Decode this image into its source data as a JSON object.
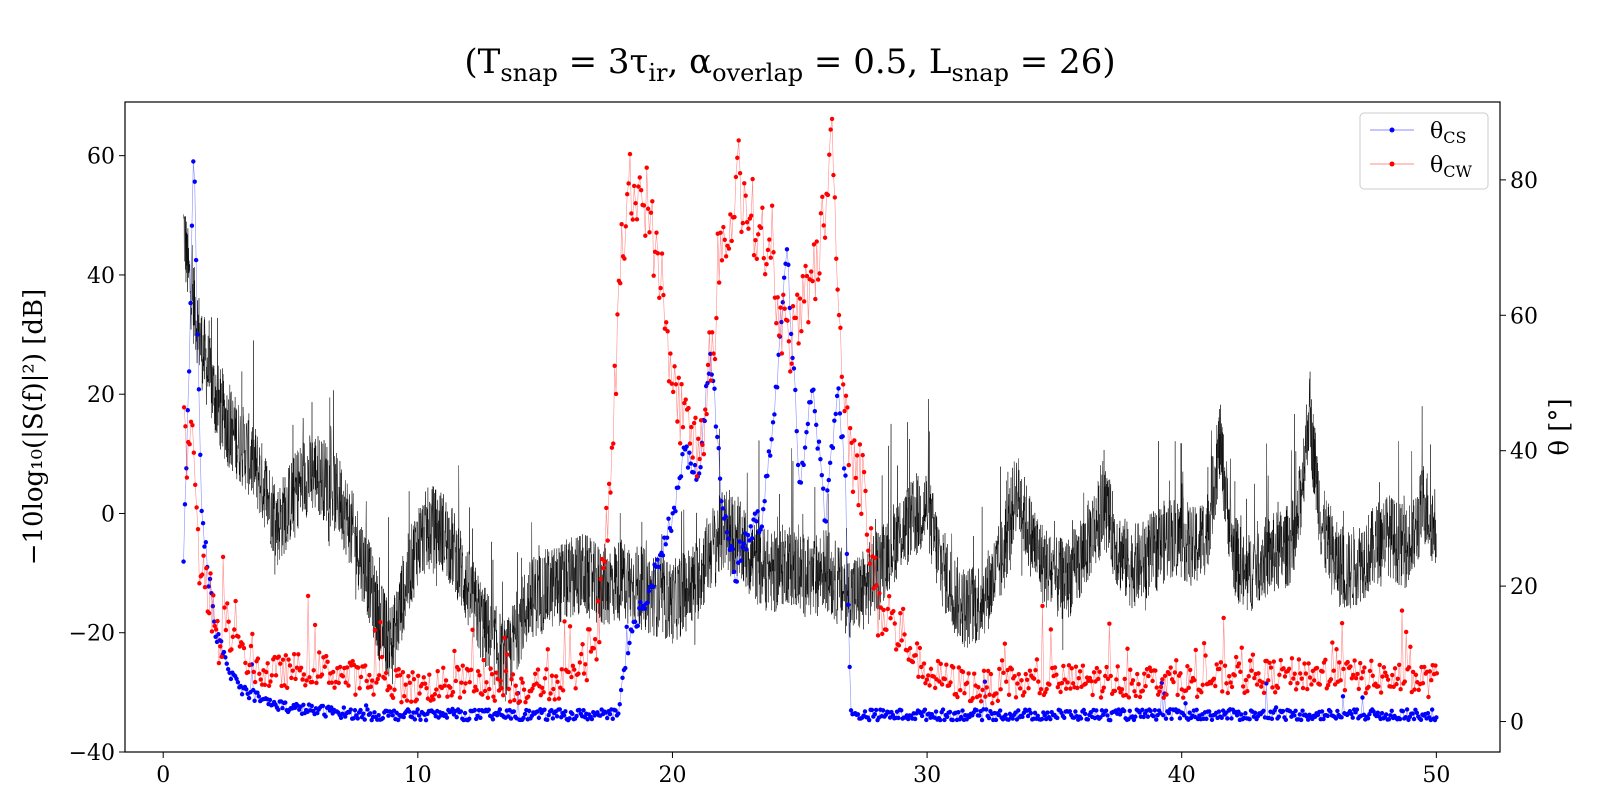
{
  "chart_data": {
    "type": "line",
    "title": "(T_snap = 3τ_ir,   α_overlap = 0.5,   L_snap = 26)",
    "title_parts": {
      "p1": "(T",
      "s1": "snap",
      "p2": " = 3τ",
      "s2": "ir",
      "p3": ",   α",
      "s3": "overlap",
      "p4": " = 0.5,   L",
      "s4": "snap",
      "p5": " = 26)"
    },
    "xlabel": "",
    "ylabel": "−10log₁₀(|S(f)|²) [dB]",
    "y2label": "θ [°]",
    "xlim": [
      -1.5,
      52.5
    ],
    "ylim": [
      -40,
      69
    ],
    "y2lim": [
      -4.5,
      91.5
    ],
    "x_ticks": [
      "0",
      "10",
      "20",
      "30",
      "40",
      "50"
    ],
    "y_ticks": [
      "−40",
      "−20",
      "0",
      "20",
      "40",
      "60"
    ],
    "y2_ticks": [
      "0",
      "20",
      "40",
      "60",
      "80"
    ],
    "grid": false,
    "legend_placement": "top-right",
    "legend": {
      "cs": {
        "base": "θ",
        "sub": "CS"
      },
      "cw": {
        "base": "θ",
        "sub": "CW"
      }
    },
    "colors": {
      "spectrum": "#000000",
      "cs": "#0000ff",
      "cw": "#ff0000"
    },
    "spectrum_envelope": {
      "x": [
        0.8,
        1.0,
        1.5,
        2.0,
        2.5,
        3.0,
        3.5,
        4.0,
        4.5,
        5.0,
        5.5,
        6.0,
        6.5,
        7.0,
        7.5,
        8.0,
        8.5,
        9.0,
        9.5,
        10.0,
        10.5,
        11.0,
        11.5,
        12.0,
        12.5,
        13.0,
        13.5,
        14.0,
        14.5,
        15.0,
        15.5,
        16.0,
        16.5,
        17.0,
        17.5,
        18.0,
        18.5,
        19.0,
        19.5,
        20.0,
        20.5,
        21.0,
        21.5,
        22.0,
        22.5,
        23.0,
        23.5,
        24.0,
        24.5,
        25.0,
        25.5,
        26.0,
        26.5,
        27.0,
        27.5,
        28.0,
        28.5,
        29.0,
        29.5,
        30.0,
        30.5,
        31.0,
        31.5,
        32.0,
        32.5,
        33.0,
        33.5,
        34.0,
        34.5,
        35.0,
        35.5,
        36.0,
        36.5,
        37.0,
        37.5,
        38.0,
        38.5,
        39.0,
        39.5,
        40.0,
        40.5,
        41.0,
        41.5,
        42.0,
        42.5,
        43.0,
        43.5,
        44.0,
        44.5,
        45.0,
        45.5,
        46.0,
        46.5,
        47.0,
        47.5,
        48.0,
        48.5,
        49.0,
        49.5,
        50.0
      ],
      "y": [
        48,
        40,
        28,
        20,
        15,
        12,
        9,
        4,
        -2,
        2,
        6,
        7,
        5,
        2,
        -4,
        -10,
        -18,
        -22,
        -12,
        -5,
        -2,
        -3,
        -7,
        -13,
        -18,
        -22,
        -25,
        -18,
        -14,
        -13,
        -12,
        -11,
        -10,
        -12,
        -12,
        -11,
        -12,
        -13,
        -14,
        -15,
        -13,
        -11,
        -6,
        -3,
        -4,
        -7,
        -9,
        -10,
        -8,
        -10,
        -11,
        -9,
        -12,
        -14,
        -13,
        -10,
        -6,
        -3,
        -1,
        1,
        -8,
        -13,
        -16,
        -15,
        -12,
        -7,
        4,
        -3,
        -8,
        -11,
        -11,
        -8,
        -3,
        1,
        -6,
        -9,
        -8,
        -6,
        -4,
        -4,
        -6,
        -3,
        12,
        -6,
        -11,
        -8,
        -7,
        -6,
        -4,
        17,
        -2,
        -8,
        -10,
        -8,
        -6,
        -3,
        -5,
        -6,
        2,
        -3
      ]
    },
    "series_cs_trend": {
      "x": [
        0.8,
        1.0,
        1.2,
        1.5,
        2.0,
        2.5,
        3.0,
        4.0,
        5.0,
        8.0,
        12.0,
        15.0,
        17.0,
        17.9,
        18.0,
        18.5,
        19.0,
        19.5,
        20.0,
        20.5,
        21.0,
        21.5,
        22.0,
        22.5,
        23.0,
        23.5,
        24.0,
        24.5,
        25.0,
        25.5,
        26.0,
        26.5,
        26.8,
        27.0,
        30.0,
        35.0,
        40.0,
        45.0,
        50.0
      ],
      "theta": [
        25,
        50,
        85,
        30,
        15,
        8,
        5,
        3,
        2,
        1,
        1,
        1,
        1,
        1,
        5,
        15,
        18,
        25,
        30,
        40,
        35,
        55,
        30,
        22,
        28,
        30,
        45,
        70,
        35,
        50,
        30,
        50,
        35,
        1,
        1,
        1,
        1,
        1,
        1
      ]
    },
    "series_cw_trend": {
      "x": [
        0.8,
        1.0,
        1.5,
        2.0,
        3.0,
        4.0,
        6.0,
        8.0,
        10.0,
        12.0,
        14.0,
        16.0,
        17.0,
        17.5,
        18.0,
        18.5,
        19.0,
        19.5,
        20.0,
        20.5,
        21.0,
        21.5,
        22.0,
        22.5,
        23.0,
        23.5,
        24.0,
        24.5,
        25.0,
        25.5,
        26.0,
        26.3,
        26.6,
        27.0,
        27.5,
        28.0,
        30.0,
        32.0,
        35.0,
        40.0,
        45.0,
        50.0
      ],
      "theta": [
        35,
        45,
        22,
        15,
        10,
        7,
        8,
        6,
        5,
        6,
        5,
        6,
        10,
        30,
        70,
        78,
        77,
        65,
        50,
        44,
        40,
        50,
        68,
        78,
        76,
        72,
        65,
        56,
        58,
        65,
        75,
        88,
        55,
        40,
        35,
        18,
        7,
        5,
        6,
        6,
        7,
        6
      ]
    }
  }
}
